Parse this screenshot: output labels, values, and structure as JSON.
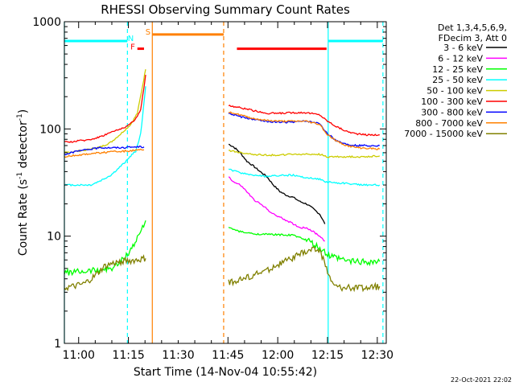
{
  "chart_data": {
    "type": "line",
    "title": "RHESSI Observing Summary Count Rates",
    "xlabel": "Start Time (14-Nov-04 10:55:42)",
    "ylabel_main": "Count Rate (s",
    "ylabel_sup1": "-1",
    "ylabel_mid": " detector",
    "ylabel_sup2": "-1",
    "ylabel_end": ")",
    "yscale": "log",
    "ylim": [
      1,
      1000
    ],
    "xlim_minutes": [
      0,
      97
    ],
    "x_ticks": [
      {
        "t": 4.3,
        "label": "11:00"
      },
      {
        "t": 19.3,
        "label": "11:15"
      },
      {
        "t": 34.3,
        "label": "11:30"
      },
      {
        "t": 49.3,
        "label": "11:45"
      },
      {
        "t": 64.3,
        "label": "12:00"
      },
      {
        "t": 79.3,
        "label": "12:15"
      },
      {
        "t": 94.3,
        "label": "12:30"
      }
    ],
    "y_ticks": [
      {
        "v": 1,
        "label": "1"
      },
      {
        "v": 10,
        "label": "10"
      },
      {
        "v": 100,
        "label": "100"
      },
      {
        "v": 1000,
        "label": "1000"
      }
    ],
    "legend_header": [
      "Det 1,3,4,5,6,9,",
      "FDecim 3, Att 0"
    ],
    "series": [
      {
        "name": "3 - 6 keV",
        "color": "#000000",
        "points": [
          [
            49.5,
            72
          ],
          [
            51,
            68
          ],
          [
            53,
            60
          ],
          [
            55,
            50
          ],
          [
            57,
            45
          ],
          [
            59,
            40
          ],
          [
            61,
            36
          ],
          [
            63,
            30
          ],
          [
            65,
            26
          ],
          [
            67,
            24
          ],
          [
            69,
            23
          ],
          [
            71,
            21
          ],
          [
            73,
            20
          ],
          [
            75,
            18
          ],
          [
            77,
            16
          ],
          [
            78.5,
            13
          ]
        ]
      },
      {
        "name": "6 - 12 keV",
        "color": "#ff00ff",
        "points": [
          [
            49.5,
            36
          ],
          [
            51,
            32
          ],
          [
            53,
            30
          ],
          [
            55,
            26
          ],
          [
            57,
            22
          ],
          [
            59,
            20
          ],
          [
            61,
            18
          ],
          [
            63,
            16
          ],
          [
            65,
            15
          ],
          [
            67,
            14
          ],
          [
            69,
            13
          ],
          [
            71,
            12
          ],
          [
            73,
            12
          ],
          [
            75,
            11
          ],
          [
            77,
            10
          ],
          [
            78.5,
            9
          ]
        ]
      },
      {
        "name": "12 - 25 keV",
        "color": "#00ff00",
        "points": [
          [
            0,
            4.6
          ],
          [
            3,
            4.6
          ],
          [
            6,
            4.7
          ],
          [
            9,
            4.8
          ],
          [
            12,
            4.9
          ],
          [
            14,
            5.0
          ],
          [
            16,
            5.4
          ],
          [
            18,
            6.2
          ],
          [
            20,
            7.5
          ],
          [
            22,
            9.5
          ],
          [
            24.5,
            14
          ],
          [
            49.5,
            12
          ],
          [
            53,
            11
          ],
          [
            57,
            10.5
          ],
          [
            61,
            10.4
          ],
          [
            65,
            10.3
          ],
          [
            69,
            10.2
          ],
          [
            73,
            9.2
          ],
          [
            77,
            7.6
          ],
          [
            80,
            6.5
          ],
          [
            85,
            5.9
          ],
          [
            90,
            5.8
          ],
          [
            95,
            5.8
          ]
        ]
      },
      {
        "name": "25 - 50 keV",
        "color": "#00ffff",
        "points": [
          [
            0,
            30
          ],
          [
            4,
            30
          ],
          [
            8,
            30
          ],
          [
            11,
            33
          ],
          [
            14,
            37
          ],
          [
            16,
            42
          ],
          [
            18,
            48
          ],
          [
            20,
            56
          ],
          [
            21.5,
            62
          ],
          [
            23,
            90
          ],
          [
            24.5,
            250
          ],
          [
            49.5,
            42
          ],
          [
            53,
            39
          ],
          [
            57,
            37
          ],
          [
            61,
            36
          ],
          [
            65,
            37
          ],
          [
            69,
            37
          ],
          [
            73,
            35
          ],
          [
            77,
            34
          ],
          [
            79,
            32
          ],
          [
            85,
            31
          ],
          [
            90,
            30
          ],
          [
            95,
            30
          ]
        ]
      },
      {
        "name": "50 - 100 keV",
        "color": "#cccc00",
        "points": [
          [
            0,
            60
          ],
          [
            4,
            62
          ],
          [
            8,
            65
          ],
          [
            11,
            68
          ],
          [
            14,
            75
          ],
          [
            17,
            90
          ],
          [
            20,
            110
          ],
          [
            22,
            140
          ],
          [
            24.5,
            360
          ],
          [
            49.5,
            63
          ],
          [
            53,
            60
          ],
          [
            57,
            58
          ],
          [
            61,
            57
          ],
          [
            65,
            57
          ],
          [
            69,
            58
          ],
          [
            73,
            58
          ],
          [
            77,
            58
          ],
          [
            79,
            55
          ],
          [
            83,
            55
          ],
          [
            87,
            55
          ],
          [
            90,
            55
          ],
          [
            95,
            56
          ]
        ]
      },
      {
        "name": "100 - 300 keV",
        "color": "#ff0000",
        "points": [
          [
            0,
            75
          ],
          [
            4,
            77
          ],
          [
            8,
            80
          ],
          [
            11,
            85
          ],
          [
            14,
            93
          ],
          [
            17,
            100
          ],
          [
            19,
            107
          ],
          [
            21,
            118
          ],
          [
            23,
            150
          ],
          [
            24.5,
            320
          ],
          [
            49.5,
            165
          ],
          [
            53,
            158
          ],
          [
            57,
            148
          ],
          [
            61,
            140
          ],
          [
            65,
            140
          ],
          [
            69,
            142
          ],
          [
            73,
            142
          ],
          [
            77,
            135
          ],
          [
            79,
            120
          ],
          [
            82,
            105
          ],
          [
            85,
            95
          ],
          [
            88,
            90
          ],
          [
            91,
            88
          ],
          [
            95,
            88
          ]
        ]
      },
      {
        "name": "300 - 800 keV",
        "color": "#0000ff",
        "points": [
          [
            0,
            58
          ],
          [
            4,
            62
          ],
          [
            8,
            65
          ],
          [
            11,
            67
          ],
          [
            14,
            67
          ],
          [
            18,
            67
          ],
          [
            21,
            68
          ],
          [
            24,
            68
          ],
          [
            49.5,
            140
          ],
          [
            53,
            130
          ],
          [
            57,
            122
          ],
          [
            61,
            118
          ],
          [
            65,
            115
          ],
          [
            69,
            116
          ],
          [
            73,
            118
          ],
          [
            77,
            112
          ],
          [
            79,
            92
          ],
          [
            82,
            78
          ],
          [
            85,
            72
          ],
          [
            88,
            70
          ],
          [
            91,
            70
          ],
          [
            95,
            70
          ]
        ]
      },
      {
        "name": "800 - 7000 keV",
        "color": "#ff8000",
        "points": [
          [
            0,
            55
          ],
          [
            4,
            57
          ],
          [
            8,
            59
          ],
          [
            11,
            60
          ],
          [
            14,
            61
          ],
          [
            18,
            62
          ],
          [
            21,
            63
          ],
          [
            24,
            64
          ],
          [
            49.5,
            145
          ],
          [
            53,
            135
          ],
          [
            57,
            125
          ],
          [
            61,
            120
          ],
          [
            65,
            118
          ],
          [
            69,
            118
          ],
          [
            73,
            118
          ],
          [
            77,
            110
          ],
          [
            79,
            90
          ],
          [
            82,
            77
          ],
          [
            85,
            70
          ],
          [
            88,
            67
          ],
          [
            91,
            66
          ],
          [
            95,
            65
          ]
        ]
      },
      {
        "name": "7000 - 15000 keV",
        "color": "#808000",
        "points": [
          [
            0,
            3.3
          ],
          [
            3,
            3.4
          ],
          [
            6,
            3.6
          ],
          [
            9,
            4.2
          ],
          [
            12,
            5.2
          ],
          [
            14,
            5.5
          ],
          [
            17,
            5.8
          ],
          [
            20,
            5.9
          ],
          [
            22,
            6.0
          ],
          [
            24.5,
            6.2
          ],
          [
            49.5,
            3.7
          ],
          [
            53,
            3.9
          ],
          [
            57,
            4.3
          ],
          [
            61,
            4.8
          ],
          [
            65,
            5.5
          ],
          [
            69,
            6.3
          ],
          [
            73,
            7.2
          ],
          [
            75,
            7.5
          ],
          [
            77,
            7.4
          ],
          [
            79,
            5.0
          ],
          [
            81,
            3.5
          ],
          [
            84,
            3.3
          ],
          [
            88,
            3.3
          ],
          [
            92,
            3.3
          ],
          [
            95,
            3.4
          ]
        ]
      }
    ],
    "markers": [
      {
        "label": "N",
        "color": "#00ffff",
        "y_value": 710
      },
      {
        "label": "F",
        "color": "#ff0000",
        "y_value": 590
      },
      {
        "label": "S",
        "color": "#ff8000",
        "y_value": 810
      }
    ],
    "marker_bars": [
      {
        "color": "#00ffff",
        "t0": 0,
        "t1": 19,
        "y_value": 660
      },
      {
        "color": "#00ffff",
        "t0": 79.5,
        "t1": 96,
        "y_value": 660
      },
      {
        "color": "#ff0000",
        "t0": 22,
        "t1": 24,
        "y_value": 560
      },
      {
        "color": "#ff8000",
        "t0": 26.5,
        "t1": 48,
        "y_value": 760
      },
      {
        "color": "#ff0000",
        "t0": 52,
        "t1": 79,
        "y_value": 560
      }
    ],
    "vlines": [
      {
        "t": 0,
        "color": "#00ffff",
        "dash": false
      },
      {
        "t": 19,
        "color": "#00ffff",
        "dash": true
      },
      {
        "t": 26.5,
        "color": "#ff8000",
        "dash": false
      },
      {
        "t": 48,
        "color": "#ff8000",
        "dash": true
      },
      {
        "t": 79.5,
        "color": "#00ffff",
        "dash": false
      },
      {
        "t": 96,
        "color": "#00ffff",
        "dash": true
      }
    ],
    "footer_date": "22-Oct-2021 22:02"
  }
}
